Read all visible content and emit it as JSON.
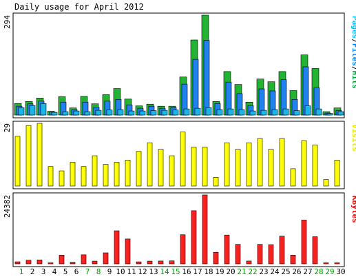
{
  "chart_data": {
    "type": "bar",
    "title": "Daily usage for April 2012",
    "x": [
      "1",
      "2",
      "3",
      "4",
      "5",
      "6",
      "7",
      "8",
      "9",
      "10",
      "11",
      "12",
      "13",
      "14",
      "15",
      "16",
      "17",
      "18",
      "19",
      "20",
      "21",
      "22",
      "23",
      "24",
      "25",
      "26",
      "27",
      "28",
      "29",
      "30"
    ],
    "weekend_days": [
      "1",
      "7",
      "8",
      "14",
      "15",
      "21",
      "22",
      "28",
      "29"
    ],
    "panels": [
      {
        "name": "hits",
        "ymax_label": "294",
        "ymax": 294,
        "legend": [
          {
            "text": "Pages",
            "color": "#00c0ff"
          },
          {
            "text": "Files",
            "color": "#0080ff"
          },
          {
            "text": "Hits",
            "color": "#00a040"
          }
        ],
        "series": [
          {
            "name": "Hits",
            "color": "#21b331",
            "values": [
              34,
              40,
              50,
              11,
              54,
              21,
              55,
              33,
              60,
              78,
              47,
              27,
              32,
              26,
              26,
              112,
              221,
              294,
              40,
              128,
              90,
              38,
              106,
              98,
              128,
              72,
              177,
              137,
              10,
              21
            ]
          },
          {
            "name": "Files",
            "color": "#1e82f0",
            "values": [
              26,
              33,
              41,
              9,
              38,
              16,
              38,
              23,
              41,
              46,
              30,
              20,
              26,
              20,
              22,
              91,
              164,
              220,
              34,
              97,
              63,
              28,
              77,
              71,
              104,
              46,
              142,
              80,
              6,
              13
            ]
          },
          {
            "name": "Pages",
            "color": "#1cb7e6",
            "values": [
              22,
              28,
              34,
              8,
              10,
              12,
              10,
              14,
              15,
              16,
              12,
              12,
              13,
              14,
              15,
              18,
              20,
              22,
              16,
              18,
              16,
              12,
              14,
              16,
              18,
              13,
              27,
              18,
              5,
              10
            ]
          }
        ]
      },
      {
        "name": "visits",
        "ymax_label": "29",
        "ymax": 29,
        "legend": [
          {
            "text": "Visits",
            "color": "#e8e800"
          }
        ],
        "series": [
          {
            "name": "Visits",
            "color": "#ffff00",
            "values": [
              23,
              28,
              29,
              9,
              7,
              11,
              9,
              14,
              10,
              11,
              12,
              16,
              20,
              17,
              14,
              25,
              18,
              18,
              4,
              20,
              17,
              20,
              22,
              17,
              22,
              8,
              21,
              19,
              3,
              12
            ]
          }
        ]
      },
      {
        "name": "kbytes",
        "ymax_label": "24382",
        "ymax": 24382,
        "legend": [
          {
            "text": "KBytes",
            "color": "#ff0000"
          }
        ],
        "series": [
          {
            "name": "KBytes",
            "color": "#ff2020",
            "values": [
              720,
              1300,
              1400,
              360,
              3100,
              560,
              3200,
              960,
              3900,
              11700,
              8800,
              710,
              960,
              1000,
              1050,
              10300,
              18800,
              24382,
              4100,
              10200,
              6900,
              1000,
              6900,
              6800,
              9800,
              3100,
              15500,
              9600,
              360,
              360
            ]
          }
        ]
      }
    ]
  }
}
